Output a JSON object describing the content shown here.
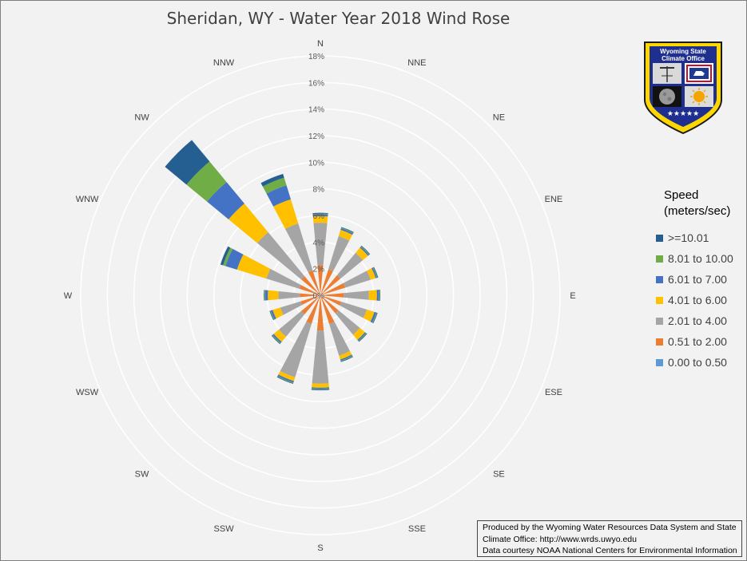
{
  "chart_data": {
    "type": "polar-stacked-bar",
    "title": "Sheridan, WY - Water Year 2018 Wind Rose",
    "directions": [
      "N",
      "NNE",
      "NE",
      "ENE",
      "E",
      "ESE",
      "SE",
      "SSE",
      "S",
      "SSW",
      "SW",
      "WSW",
      "W",
      "WNW",
      "NW",
      "NNW"
    ],
    "bar_directions": [
      "N",
      "NNE",
      "NE",
      "ENE",
      "E",
      "ESE",
      "SE",
      "SSE",
      "S",
      "SSW",
      "SW",
      "WSW",
      "W",
      "WNW",
      "NW",
      "NNW"
    ],
    "r_ticks": [
      "0%",
      "2%",
      "4%",
      "6%",
      "8%",
      "10%",
      "12%",
      "14%",
      "16%",
      "18%"
    ],
    "r_max": 18,
    "legend_title_lines": [
      "Speed",
      "(meters/sec)"
    ],
    "legend_position": "right",
    "series": [
      {
        "name": "0.00 to 0.50",
        "color": "#5b9bd5",
        "values": [
          0.05,
          0.05,
          0.05,
          0.05,
          0.05,
          0.05,
          0.05,
          0.05,
          0.05,
          0.05,
          0.05,
          0.05,
          0.05,
          0.05,
          0.05,
          0.05
        ]
      },
      {
        "name": "0.51 to 2.00",
        "color": "#ed7d31",
        "values": [
          2.2,
          2.0,
          1.9,
          1.9,
          1.7,
          1.6,
          1.7,
          2.2,
          2.6,
          2.2,
          1.8,
          1.5,
          1.5,
          1.6,
          1.8,
          1.9
        ]
      },
      {
        "name": "2.01 to 4.00",
        "color": "#a5a5a5",
        "values": [
          3.2,
          2.6,
          2.2,
          2.0,
          1.9,
          2.0,
          2.1,
          2.5,
          4.0,
          4.2,
          2.2,
          1.6,
          1.6,
          2.6,
          4.3,
          3.7
        ]
      },
      {
        "name": "4.01 to 6.00",
        "color": "#ffc000",
        "values": [
          0.5,
          0.5,
          0.5,
          0.4,
          0.6,
          0.6,
          0.5,
          0.3,
          0.3,
          0.3,
          0.5,
          0.6,
          0.8,
          2.3,
          2.8,
          1.9
        ]
      },
      {
        "name": "6.01 to 7.00",
        "color": "#4472c4",
        "values": [
          0.15,
          0.12,
          0.1,
          0.1,
          0.15,
          0.15,
          0.1,
          0.1,
          0.1,
          0.12,
          0.12,
          0.15,
          0.2,
          0.9,
          2.1,
          1.1
        ]
      },
      {
        "name": "8.01 to 10.00",
        "color": "#70ad47",
        "values": [
          0.05,
          0.05,
          0.05,
          0.05,
          0.05,
          0.05,
          0.05,
          0.05,
          0.05,
          0.05,
          0.05,
          0.05,
          0.05,
          0.2,
          2.0,
          0.6
        ]
      },
      {
        "name": ">=10.01",
        "color": "#255e91",
        "values": [
          0.05,
          0.05,
          0.05,
          0.05,
          0.05,
          0.05,
          0.05,
          0.05,
          0.05,
          0.05,
          0.05,
          0.05,
          0.05,
          0.2,
          2.1,
          0.3
        ]
      }
    ]
  },
  "legend_order": [
    6,
    5,
    4,
    3,
    2,
    1,
    0
  ],
  "badge": {
    "title_line1": "Wyoming State",
    "title_line2": "Climate Office",
    "stars": "★★★★★"
  },
  "credit": {
    "line1": "Produced by the Wyoming Water Resources Data System and State",
    "line2": "Climate Office: http://www.wrds.uwyo.edu",
    "line3": "Data courtesy NOAA National Centers for Environmental Information"
  }
}
